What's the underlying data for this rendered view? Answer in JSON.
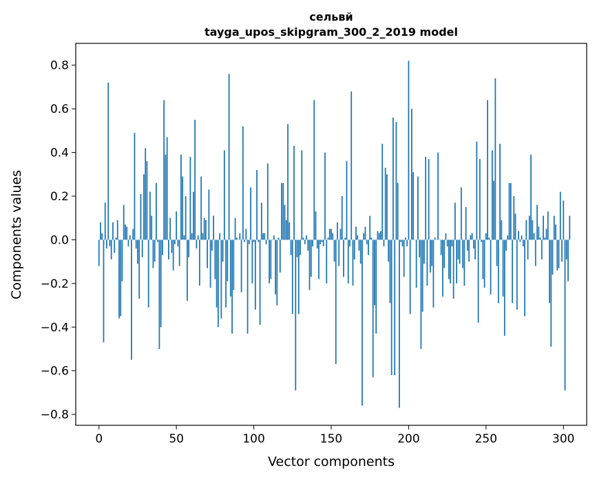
{
  "chart_data": {
    "type": "bar",
    "title": "сельвй",
    "subtitle": "tayga_upos_skipgram_300_2_2019 model",
    "xlabel": "Vector components",
    "ylabel": "Components values",
    "xlim": [
      -15,
      315
    ],
    "ylim": [
      -0.85,
      0.9
    ],
    "xticks": [
      0,
      50,
      100,
      150,
      200,
      250,
      300
    ],
    "yticks": [
      -0.8,
      -0.6,
      -0.4,
      -0.2,
      0.0,
      0.2,
      0.4,
      0.6,
      0.8
    ],
    "ytick_labels": [
      "−0.8",
      "−0.6",
      "−0.4",
      "−0.2",
      "0.0",
      "0.2",
      "0.4",
      "0.6",
      "0.8"
    ],
    "grid": false,
    "bar_color": "#1f77b4",
    "values": [
      -0.12,
      0.08,
      0.03,
      -0.47,
      0.17,
      -0.04,
      0.72,
      -0.03,
      -0.09,
      0.08,
      -0.06,
      0.01,
      0.09,
      -0.36,
      -0.35,
      -0.19,
      0.16,
      0.07,
      0.06,
      -0.03,
      0.02,
      -0.55,
      0.05,
      0.49,
      -0.04,
      -0.11,
      -0.27,
      0.21,
      -0.08,
      0.3,
      0.42,
      0.36,
      -0.31,
      0.22,
      0.11,
      -0.13,
      -0.1,
      0.26,
      -0.01,
      -0.5,
      -0.4,
      -0.07,
      0.64,
      0.39,
      0.47,
      -0.09,
      0.1,
      -0.06,
      -0.14,
      -0.02,
      0.13,
      -0.03,
      -0.12,
      0.39,
      0.29,
      0.02,
      0.2,
      -0.28,
      -0.08,
      0.38,
      0.03,
      0.22,
      0.55,
      -0.04,
      0.02,
      -0.21,
      0.29,
      0.03,
      0.1,
      0.09,
      -0.13,
      0.23,
      -0.22,
      -0.05,
      0.11,
      -0.18,
      -0.31,
      -0.4,
      0.03,
      -0.36,
      -0.1,
      0.41,
      -0.31,
      -0.19,
      0.76,
      -0.26,
      -0.43,
      -0.23,
      0.1,
      0.01,
      0.0,
      0.03,
      -0.24,
      0.52,
      -0.01,
      0.05,
      -0.43,
      -0.02,
      0.24,
      -0.2,
      -0.01,
      -0.32,
      0.32,
      -0.01,
      -0.39,
      0.17,
      0.03,
      0.03,
      -0.02,
      0.35,
      -0.2,
      -0.18,
      0.0,
      0.02,
      -0.25,
      -0.3,
      0.01,
      -0.15,
      0.26,
      0.26,
      0.16,
      0.09,
      0.53,
      0.08,
      -0.07,
      -0.34,
      0.43,
      -0.69,
      -0.08,
      -0.34,
      -0.07,
      0.41,
      0.01,
      -0.02,
      0.02,
      -0.05,
      -0.23,
      -0.17,
      -0.03,
      0.64,
      0.13,
      -0.04,
      -0.18,
      -0.02,
      -0.01,
      -0.03,
      0.4,
      -0.2,
      0.01,
      0.05,
      0.05,
      0.03,
      -0.1,
      -0.57,
      0.08,
      -0.12,
      0.05,
      0.2,
      -0.17,
      0.01,
      0.36,
      -0.2,
      -0.03,
      0.68,
      -0.21,
      -0.09,
      0.06,
      0.02,
      -0.05,
      -0.11,
      -0.76,
      0.03,
      0.06,
      -0.02,
      -0.07,
      0.11,
      0.01,
      -0.63,
      -0.3,
      -0.43,
      0.04,
      0.03,
      0.04,
      0.44,
      -0.03,
      0.33,
      0.3,
      -0.1,
      -0.29,
      -0.62,
      0.56,
      -0.62,
      0.54,
      0.26,
      -0.77,
      -0.01,
      -0.03,
      -0.17,
      0.01,
      -0.03,
      0.82,
      -0.34,
      0.6,
      0.31,
      0.0,
      -0.22,
      0.29,
      -0.08,
      -0.5,
      -0.33,
      -0.11,
      0.38,
      -0.21,
      0.37,
      -0.15,
      -0.12,
      -0.31,
      0.01,
      0.0,
      0.4,
      0.0,
      -0.07,
      -0.26,
      -0.13,
      0.03,
      -0.03,
      -0.18,
      -0.2,
      -0.03,
      -0.27,
      0.17,
      -0.2,
      -0.09,
      -0.11,
      0.24,
      -0.13,
      -0.21,
      0.15,
      -0.05,
      -0.1,
      0.02,
      0.03,
      -0.04,
      -0.09,
      0.45,
      -0.38,
      0.37,
      -0.01,
      -0.18,
      -0.22,
      0.03,
      0.64,
      0.01,
      -0.25,
      0.41,
      0.27,
      0.74,
      -0.12,
      -0.29,
      0.44,
      0.09,
      -0.26,
      -0.44,
      -0.05,
      0.02,
      0.26,
      0.26,
      -0.29,
      0.2,
      0.12,
      -0.32,
      0.04,
      -0.01,
      0.02,
      -0.03,
      -0.35,
      0.09,
      -0.09,
      0.11,
      0.39,
      0.09,
      0.03,
      -0.12,
      0.16,
      0.06,
      0.01,
      -0.09,
      0.11,
      0.01,
      0.05,
      0.13,
      -0.29,
      -0.49,
      -0.16,
      0.11,
      0.07,
      -0.14,
      -0.13,
      0.22,
      -0.1,
      0.18,
      -0.69,
      -0.09,
      -0.19,
      0.11
    ]
  }
}
